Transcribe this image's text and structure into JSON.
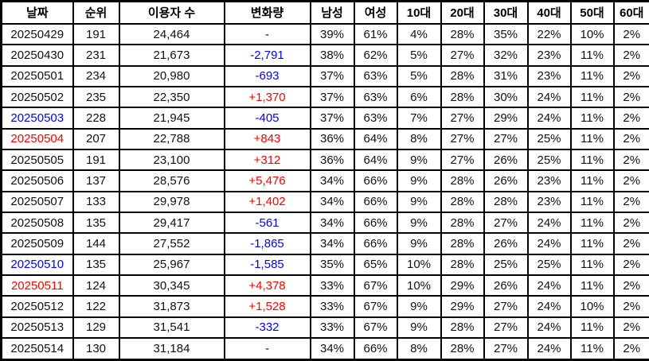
{
  "table": {
    "headers": [
      "날짜",
      "순위",
      "이용자 수",
      "변화량",
      "남성",
      "여성",
      "10대",
      "20대",
      "30대",
      "40대",
      "50대",
      "60대"
    ],
    "rows": [
      {
        "date": "20250429",
        "dateColor": "default",
        "rank": "191",
        "users": "24,464",
        "change": "-",
        "changeColor": "default",
        "pcts": [
          "39%",
          "61%",
          "4%",
          "28%",
          "35%",
          "22%",
          "10%",
          "2%"
        ]
      },
      {
        "date": "20250430",
        "dateColor": "default",
        "rank": "231",
        "users": "21,673",
        "change": "-2,791",
        "changeColor": "blue",
        "pcts": [
          "38%",
          "62%",
          "5%",
          "27%",
          "32%",
          "23%",
          "11%",
          "2%"
        ]
      },
      {
        "date": "20250501",
        "dateColor": "default",
        "rank": "234",
        "users": "20,980",
        "change": "-693",
        "changeColor": "blue",
        "pcts": [
          "37%",
          "63%",
          "5%",
          "28%",
          "31%",
          "23%",
          "11%",
          "2%"
        ]
      },
      {
        "date": "20250502",
        "dateColor": "default",
        "rank": "235",
        "users": "22,350",
        "change": "+1,370",
        "changeColor": "red",
        "pcts": [
          "37%",
          "63%",
          "6%",
          "28%",
          "30%",
          "24%",
          "11%",
          "2%"
        ]
      },
      {
        "date": "20250503",
        "dateColor": "blue",
        "rank": "228",
        "users": "21,945",
        "change": "-405",
        "changeColor": "blue",
        "pcts": [
          "37%",
          "63%",
          "7%",
          "27%",
          "29%",
          "24%",
          "11%",
          "2%"
        ]
      },
      {
        "date": "20250504",
        "dateColor": "red",
        "rank": "207",
        "users": "22,788",
        "change": "+843",
        "changeColor": "red",
        "pcts": [
          "36%",
          "64%",
          "8%",
          "27%",
          "27%",
          "25%",
          "11%",
          "2%"
        ]
      },
      {
        "date": "20250505",
        "dateColor": "default",
        "rank": "191",
        "users": "23,100",
        "change": "+312",
        "changeColor": "red",
        "pcts": [
          "36%",
          "64%",
          "9%",
          "27%",
          "26%",
          "25%",
          "11%",
          "2%"
        ]
      },
      {
        "date": "20250506",
        "dateColor": "default",
        "rank": "137",
        "users": "28,576",
        "change": "+5,476",
        "changeColor": "red",
        "pcts": [
          "34%",
          "66%",
          "9%",
          "28%",
          "26%",
          "23%",
          "11%",
          "2%"
        ]
      },
      {
        "date": "20250507",
        "dateColor": "default",
        "rank": "133",
        "users": "29,978",
        "change": "+1,402",
        "changeColor": "red",
        "pcts": [
          "34%",
          "66%",
          "9%",
          "28%",
          "28%",
          "23%",
          "11%",
          "2%"
        ]
      },
      {
        "date": "20250508",
        "dateColor": "default",
        "rank": "135",
        "users": "29,417",
        "change": "-561",
        "changeColor": "blue",
        "pcts": [
          "34%",
          "66%",
          "9%",
          "28%",
          "27%",
          "24%",
          "11%",
          "2%"
        ]
      },
      {
        "date": "20250509",
        "dateColor": "default",
        "rank": "144",
        "users": "27,552",
        "change": "-1,865",
        "changeColor": "blue",
        "pcts": [
          "34%",
          "66%",
          "9%",
          "28%",
          "26%",
          "24%",
          "11%",
          "2%"
        ]
      },
      {
        "date": "20250510",
        "dateColor": "blue",
        "rank": "135",
        "users": "25,967",
        "change": "-1,585",
        "changeColor": "blue",
        "pcts": [
          "35%",
          "65%",
          "10%",
          "28%",
          "25%",
          "25%",
          "11%",
          "2%"
        ]
      },
      {
        "date": "20250511",
        "dateColor": "red",
        "rank": "124",
        "users": "30,345",
        "change": "+4,378",
        "changeColor": "red",
        "pcts": [
          "33%",
          "67%",
          "10%",
          "29%",
          "26%",
          "24%",
          "11%",
          "2%"
        ]
      },
      {
        "date": "20250512",
        "dateColor": "default",
        "rank": "122",
        "users": "31,873",
        "change": "+1,528",
        "changeColor": "red",
        "pcts": [
          "33%",
          "67%",
          "9%",
          "29%",
          "27%",
          "24%",
          "10%",
          "2%"
        ]
      },
      {
        "date": "20250513",
        "dateColor": "default",
        "rank": "129",
        "users": "31,541",
        "change": "-332",
        "changeColor": "blue",
        "pcts": [
          "33%",
          "67%",
          "9%",
          "28%",
          "27%",
          "24%",
          "11%",
          "2%"
        ]
      },
      {
        "date": "20250514",
        "dateColor": "default",
        "rank": "130",
        "users": "31,184",
        "change": "-",
        "changeColor": "default",
        "pcts": [
          "34%",
          "66%",
          "8%",
          "28%",
          "27%",
          "24%",
          "11%",
          "2%"
        ]
      }
    ]
  },
  "colors": {
    "default": "#111111",
    "blue": "#0000ff",
    "red": "#ff0000",
    "border": "#000000",
    "background": "#ffffff"
  }
}
